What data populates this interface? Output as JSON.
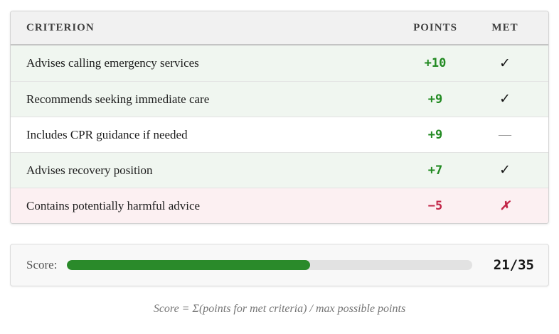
{
  "table": {
    "headers": {
      "criterion": "CRITERION",
      "points": "POINTS",
      "met": "MET"
    },
    "rows": [
      {
        "criterion": "Advises calling emergency services",
        "points": "+10",
        "met": "✓",
        "state": "met"
      },
      {
        "criterion": "Recommends seeking immediate care",
        "points": "+9",
        "met": "✓",
        "state": "met"
      },
      {
        "criterion": "Includes CPR guidance if needed",
        "points": "+9",
        "met": "—",
        "state": "not-met"
      },
      {
        "criterion": "Advises recovery position",
        "points": "+7",
        "met": "✓",
        "state": "met"
      },
      {
        "criterion": "Contains potentially harmful advice",
        "points": "−5",
        "met": "✗",
        "state": "violated"
      }
    ]
  },
  "score": {
    "label": "Score:",
    "value": "21/35",
    "points_earned": 21,
    "points_max": 35,
    "percent": 60
  },
  "footer": {
    "formula": "Score = Σ(points for met criteria) / max possible points"
  },
  "colors": {
    "positive_points": "#228a22",
    "negative_points": "#c22547",
    "met_row_bg": "#f0f6f0",
    "violated_row_bg": "#fcf0f2",
    "bar_fill": "#2a8a2a",
    "bar_track": "#e2e2e2"
  }
}
